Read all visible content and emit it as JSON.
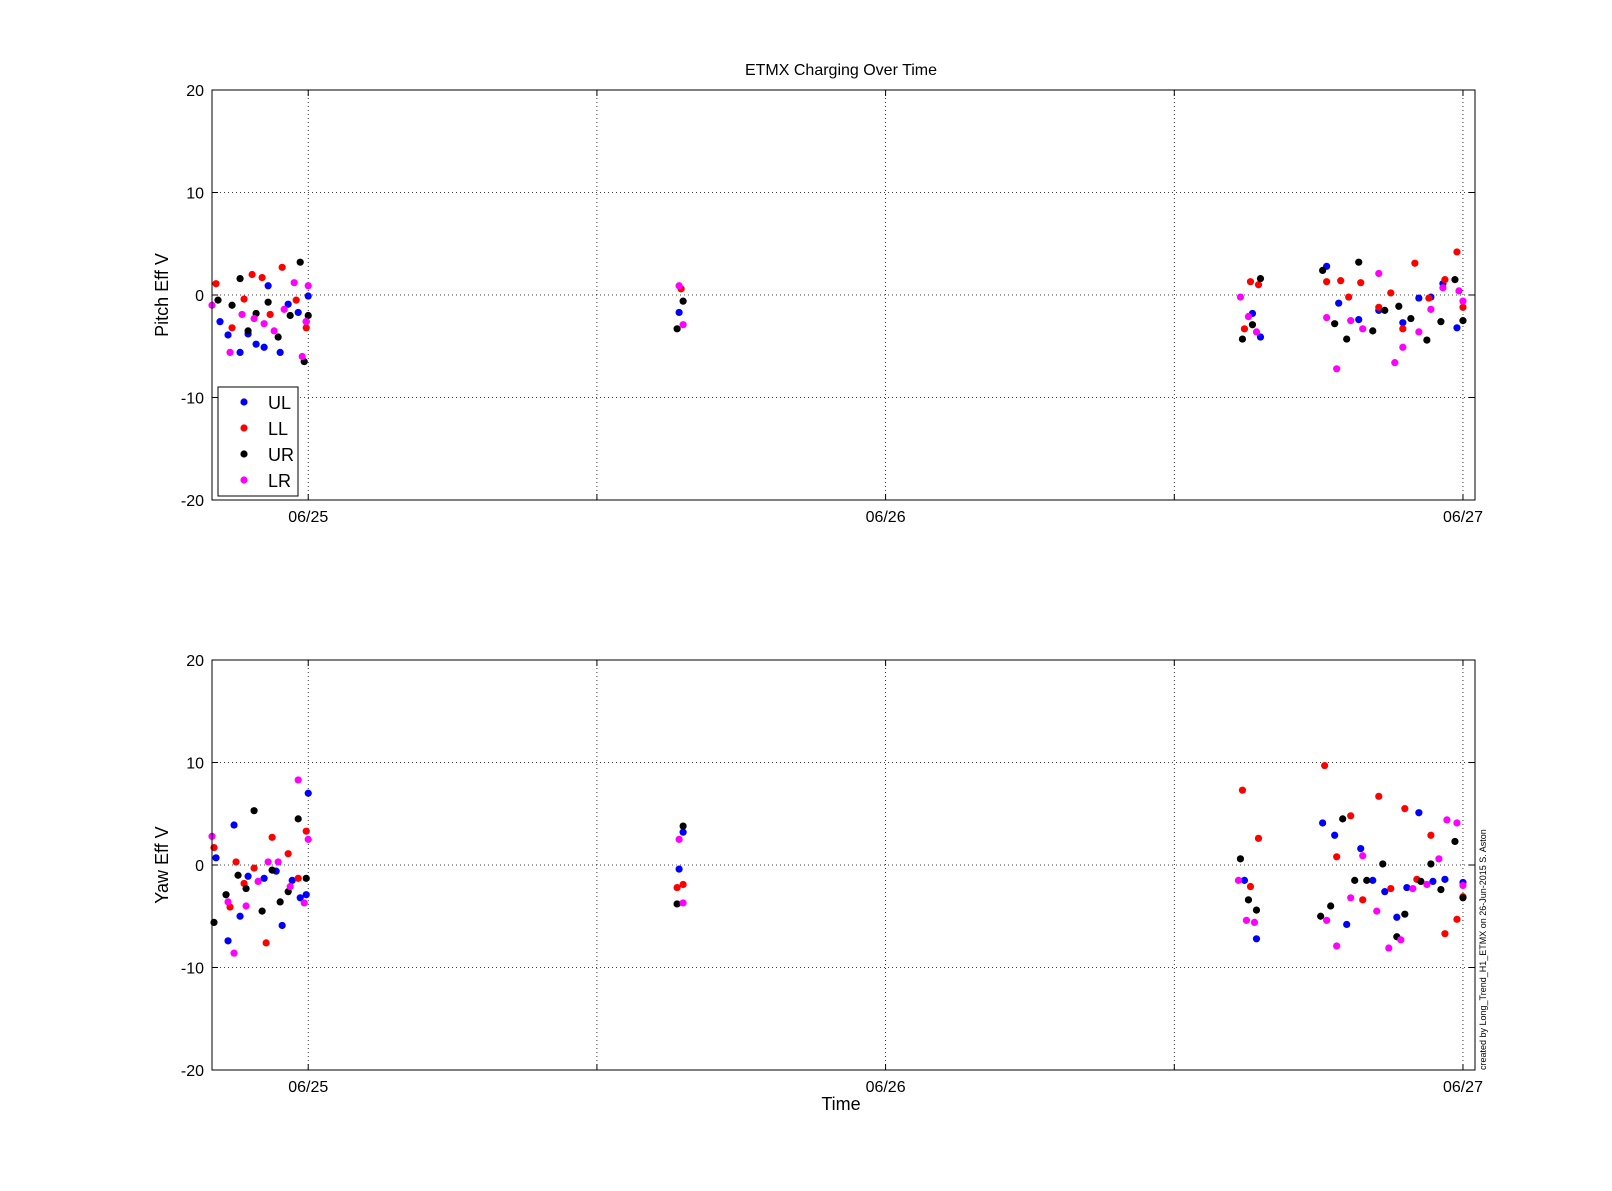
{
  "figure": {
    "title": "ETMX Charging Over Time",
    "credit": "created by Long_Trend_H1_ETMX on 26-Jun-2015 S. Aston",
    "colors": {
      "UL": "#0000ff",
      "LL": "#ff0000",
      "UR": "#000000",
      "LR": "#ff00ff"
    }
  },
  "legend": {
    "placement": "bottom-left of top panel",
    "entries": [
      "UL",
      "LL",
      "UR",
      "LR"
    ]
  },
  "chart_data": [
    {
      "type": "scatter",
      "title": "ETMX Charging Over Time",
      "xlabel": "",
      "ylabel": "Pitch Eff V",
      "x_unit": "days",
      "xlim": [
        "06/24 20:00",
        "06/27 00:30"
      ],
      "ylim": [
        -20,
        20
      ],
      "yticks": [
        -20,
        -10,
        0,
        10,
        20
      ],
      "xticks": [
        "06/25",
        "06/26",
        "06/27"
      ],
      "grid": true,
      "legend": "bottom-left",
      "series": [
        {
          "name": "UL",
          "points": [
            [
              "06/24 20:20",
              -2.6
            ],
            [
              "06/24 20:40",
              -3.9
            ],
            [
              "06/24 21:10",
              -5.6
            ],
            [
              "06/24 21:30",
              -3.8
            ],
            [
              "06/24 21:50",
              -4.8
            ],
            [
              "06/24 22:10",
              -5.1
            ],
            [
              "06/24 22:20",
              0.9
            ],
            [
              "06/24 22:50",
              -5.6
            ],
            [
              "06/24 23:10",
              -0.9
            ],
            [
              "06/24 23:35",
              -1.7
            ],
            [
              "06/24 23:55",
              -2.6
            ],
            [
              "06/25 00:00",
              -0.1
            ],
            [
              "06/25 15:25",
              -1.7
            ],
            [
              "06/26 15:15",
              -1.8
            ],
            [
              "06/26 15:35",
              -4.1
            ],
            [
              "06/26 18:20",
              2.8
            ],
            [
              "06/26 18:50",
              -0.8
            ],
            [
              "06/26 19:40",
              -2.4
            ],
            [
              "06/26 20:30",
              -1.5
            ],
            [
              "06/26 21:30",
              -2.7
            ],
            [
              "06/26 22:10",
              -0.3
            ],
            [
              "06/26 22:40",
              -0.2
            ],
            [
              "06/26 23:10",
              1.1
            ],
            [
              "06/26 23:45",
              -3.2
            ]
          ]
        },
        {
          "name": "LL",
          "points": [
            [
              "06/24 20:10",
              1.1
            ],
            [
              "06/24 20:50",
              -3.2
            ],
            [
              "06/24 21:20",
              -0.4
            ],
            [
              "06/24 21:40",
              2.0
            ],
            [
              "06/24 22:05",
              1.7
            ],
            [
              "06/24 22:25",
              -1.9
            ],
            [
              "06/24 22:55",
              2.7
            ],
            [
              "06/24 23:30",
              -0.5
            ],
            [
              "06/24 23:55",
              -3.2
            ],
            [
              "06/25 15:30",
              0.6
            ],
            [
              "06/26 14:55",
              -3.3
            ],
            [
              "06/26 15:10",
              1.3
            ],
            [
              "06/26 15:30",
              1.0
            ],
            [
              "06/26 18:20",
              1.3
            ],
            [
              "06/26 18:55",
              1.4
            ],
            [
              "06/26 19:15",
              -0.2
            ],
            [
              "06/26 19:45",
              1.2
            ],
            [
              "06/26 20:30",
              -1.2
            ],
            [
              "06/26 21:00",
              0.2
            ],
            [
              "06/26 21:30",
              -3.3
            ],
            [
              "06/26 22:00",
              3.1
            ],
            [
              "06/26 22:35",
              -0.3
            ],
            [
              "06/26 23:15",
              1.5
            ],
            [
              "06/26 23:45",
              4.2
            ],
            [
              "06/27 00:00",
              -1.2
            ]
          ]
        },
        {
          "name": "UR",
          "points": [
            [
              "06/24 20:15",
              -0.5
            ],
            [
              "06/24 20:50",
              -1.0
            ],
            [
              "06/24 21:10",
              1.6
            ],
            [
              "06/24 21:30",
              -3.5
            ],
            [
              "06/24 21:50",
              -1.8
            ],
            [
              "06/24 22:20",
              -0.7
            ],
            [
              "06/24 22:45",
              -4.1
            ],
            [
              "06/24 23:15",
              -2.0
            ],
            [
              "06/24 23:40",
              3.2
            ],
            [
              "06/24 23:50",
              -6.5
            ],
            [
              "06/25 00:00",
              -2.0
            ],
            [
              "06/25 15:20",
              -3.3
            ],
            [
              "06/25 15:35",
              -0.6
            ],
            [
              "06/26 14:50",
              -4.3
            ],
            [
              "06/26 15:15",
              -2.9
            ],
            [
              "06/26 15:35",
              1.6
            ],
            [
              "06/26 18:10",
              2.4
            ],
            [
              "06/26 18:40",
              -2.8
            ],
            [
              "06/26 19:10",
              -4.3
            ],
            [
              "06/26 19:40",
              3.2
            ],
            [
              "06/26 20:15",
              -3.5
            ],
            [
              "06/26 20:45",
              -1.5
            ],
            [
              "06/26 21:20",
              -1.1
            ],
            [
              "06/26 21:50",
              -2.3
            ],
            [
              "06/26 22:30",
              -4.4
            ],
            [
              "06/26 23:05",
              -2.6
            ],
            [
              "06/26 23:40",
              1.5
            ],
            [
              "06/27 00:00",
              -2.5
            ]
          ]
        },
        {
          "name": "LR",
          "points": [
            [
              "06/24 20:00",
              -1.0
            ],
            [
              "06/24 20:45",
              -5.6
            ],
            [
              "06/24 21:15",
              -1.9
            ],
            [
              "06/24 21:45",
              -2.3
            ],
            [
              "06/24 22:10",
              -2.8
            ],
            [
              "06/24 22:35",
              -3.5
            ],
            [
              "06/24 23:00",
              -1.4
            ],
            [
              "06/24 23:25",
              1.2
            ],
            [
              "06/24 23:45",
              -6.0
            ],
            [
              "06/24 23:55",
              -2.6
            ],
            [
              "06/25 00:00",
              0.9
            ],
            [
              "06/25 15:25",
              0.9
            ],
            [
              "06/25 15:35",
              -2.9
            ],
            [
              "06/26 14:45",
              -0.2
            ],
            [
              "06/26 15:05",
              -2.1
            ],
            [
              "06/26 15:25",
              -3.6
            ],
            [
              "06/26 18:20",
              -2.2
            ],
            [
              "06/26 18:45",
              -7.2
            ],
            [
              "06/26 19:20",
              -2.5
            ],
            [
              "06/26 19:50",
              -3.3
            ],
            [
              "06/26 20:30",
              2.1
            ],
            [
              "06/26 21:10",
              -6.6
            ],
            [
              "06/26 21:30",
              -5.1
            ],
            [
              "06/26 22:10",
              -3.6
            ],
            [
              "06/26 22:40",
              -1.4
            ],
            [
              "06/26 23:10",
              0.7
            ],
            [
              "06/26 23:50",
              0.4
            ],
            [
              "06/27 00:00",
              -0.6
            ]
          ]
        }
      ]
    },
    {
      "type": "scatter",
      "title": "",
      "xlabel": "Time",
      "ylabel": "Yaw Eff V",
      "x_unit": "days",
      "xlim": [
        "06/24 20:00",
        "06/27 00:30"
      ],
      "ylim": [
        -20,
        20
      ],
      "yticks": [
        -20,
        -10,
        0,
        10,
        20
      ],
      "xticks": [
        "06/25",
        "06/26",
        "06/27"
      ],
      "grid": true,
      "series": [
        {
          "name": "UL",
          "points": [
            [
              "06/24 20:10",
              0.7
            ],
            [
              "06/24 20:40",
              -7.4
            ],
            [
              "06/24 20:55",
              3.9
            ],
            [
              "06/24 21:10",
              -5.0
            ],
            [
              "06/24 21:30",
              -1.1
            ],
            [
              "06/24 22:10",
              -1.3
            ],
            [
              "06/24 22:40",
              -0.6
            ],
            [
              "06/24 22:55",
              -5.9
            ],
            [
              "06/24 23:20",
              -1.5
            ],
            [
              "06/24 23:40",
              -3.2
            ],
            [
              "06/24 23:55",
              -2.9
            ],
            [
              "06/25 00:00",
              7.0
            ],
            [
              "06/25 15:25",
              -0.4
            ],
            [
              "06/25 15:35",
              3.2
            ],
            [
              "06/26 14:55",
              -1.5
            ],
            [
              "06/26 15:25",
              -7.2
            ],
            [
              "06/26 18:10",
              4.1
            ],
            [
              "06/26 18:40",
              2.9
            ],
            [
              "06/26 19:10",
              -5.8
            ],
            [
              "06/26 19:45",
              1.6
            ],
            [
              "06/26 20:15",
              -1.5
            ],
            [
              "06/26 20:45",
              -2.6
            ],
            [
              "06/26 21:15",
              -5.1
            ],
            [
              "06/26 21:40",
              -2.2
            ],
            [
              "06/26 22:10",
              5.1
            ],
            [
              "06/26 22:45",
              -1.6
            ],
            [
              "06/26 23:15",
              -1.4
            ],
            [
              "06/27 00:00",
              -1.7
            ]
          ]
        },
        {
          "name": "LL",
          "points": [
            [
              "06/24 20:05",
              1.7
            ],
            [
              "06/24 20:45",
              -4.1
            ],
            [
              "06/24 21:00",
              0.3
            ],
            [
              "06/24 21:20",
              -1.8
            ],
            [
              "06/24 21:45",
              -0.3
            ],
            [
              "06/24 22:15",
              -7.6
            ],
            [
              "06/24 22:30",
              2.7
            ],
            [
              "06/24 23:10",
              1.1
            ],
            [
              "06/24 23:35",
              -1.3
            ],
            [
              "06/24 23:55",
              3.3
            ],
            [
              "06/25 15:20",
              -2.2
            ],
            [
              "06/25 15:35",
              -1.9
            ],
            [
              "06/26 14:50",
              7.3
            ],
            [
              "06/26 15:10",
              -2.1
            ],
            [
              "06/26 15:30",
              2.6
            ],
            [
              "06/26 18:15",
              9.7
            ],
            [
              "06/26 18:45",
              0.8
            ],
            [
              "06/26 19:20",
              4.8
            ],
            [
              "06/26 19:50",
              -3.4
            ],
            [
              "06/26 20:30",
              6.7
            ],
            [
              "06/26 21:00",
              -2.3
            ],
            [
              "06/26 21:35",
              5.5
            ],
            [
              "06/26 22:05",
              -1.4
            ],
            [
              "06/26 22:40",
              2.9
            ],
            [
              "06/26 23:15",
              -6.7
            ],
            [
              "06/26 23:45",
              -5.3
            ],
            [
              "06/27 00:00",
              -3.1
            ]
          ]
        },
        {
          "name": "UR",
          "points": [
            [
              "06/24 20:05",
              -5.6
            ],
            [
              "06/24 20:35",
              -2.9
            ],
            [
              "06/24 21:05",
              -1.0
            ],
            [
              "06/24 21:25",
              -2.3
            ],
            [
              "06/24 21:45",
              5.3
            ],
            [
              "06/24 22:05",
              -4.5
            ],
            [
              "06/24 22:30",
              -0.5
            ],
            [
              "06/24 22:50",
              -3.6
            ],
            [
              "06/24 23:10",
              -2.6
            ],
            [
              "06/24 23:35",
              4.5
            ],
            [
              "06/24 23:55",
              -1.3
            ],
            [
              "06/25 15:20",
              -3.8
            ],
            [
              "06/25 15:35",
              3.8
            ],
            [
              "06/26 14:45",
              0.6
            ],
            [
              "06/26 15:05",
              -3.4
            ],
            [
              "06/26 15:25",
              -4.4
            ],
            [
              "06/26 18:05",
              -5.0
            ],
            [
              "06/26 18:30",
              -4.0
            ],
            [
              "06/26 19:00",
              4.5
            ],
            [
              "06/26 19:30",
              -1.5
            ],
            [
              "06/26 20:00",
              -1.5
            ],
            [
              "06/26 20:40",
              0.1
            ],
            [
              "06/26 21:15",
              -7.0
            ],
            [
              "06/26 21:35",
              -4.8
            ],
            [
              "06/26 22:15",
              -1.6
            ],
            [
              "06/26 22:40",
              0.1
            ],
            [
              "06/26 23:05",
              -2.4
            ],
            [
              "06/26 23:40",
              2.3
            ],
            [
              "06/27 00:00",
              -3.2
            ]
          ]
        },
        {
          "name": "LR",
          "points": [
            [
              "06/24 20:00",
              2.8
            ],
            [
              "06/24 20:40",
              -3.6
            ],
            [
              "06/24 20:55",
              -8.6
            ],
            [
              "06/24 21:25",
              -4.0
            ],
            [
              "06/24 21:55",
              -1.6
            ],
            [
              "06/24 22:20",
              0.3
            ],
            [
              "06/24 22:45",
              0.3
            ],
            [
              "06/24 23:15",
              -2.1
            ],
            [
              "06/24 23:35",
              8.3
            ],
            [
              "06/24 23:50",
              -3.7
            ],
            [
              "06/25 00:00",
              2.5
            ],
            [
              "06/25 15:25",
              2.5
            ],
            [
              "06/25 15:35",
              -3.7
            ],
            [
              "06/26 14:40",
              -1.5
            ],
            [
              "06/26 15:00",
              -5.4
            ],
            [
              "06/26 15:20",
              -5.6
            ],
            [
              "06/26 18:20",
              -5.4
            ],
            [
              "06/26 18:45",
              -7.9
            ],
            [
              "06/26 19:20",
              -3.2
            ],
            [
              "06/26 19:50",
              0.9
            ],
            [
              "06/26 20:25",
              -4.5
            ],
            [
              "06/26 20:55",
              -8.1
            ],
            [
              "06/26 21:25",
              -7.3
            ],
            [
              "06/26 21:55",
              -2.3
            ],
            [
              "06/26 22:30",
              -1.9
            ],
            [
              "06/26 23:00",
              0.6
            ],
            [
              "06/26 23:20",
              4.4
            ],
            [
              "06/26 23:45",
              4.1
            ],
            [
              "06/27 00:00",
              -2.0
            ]
          ]
        }
      ]
    }
  ]
}
